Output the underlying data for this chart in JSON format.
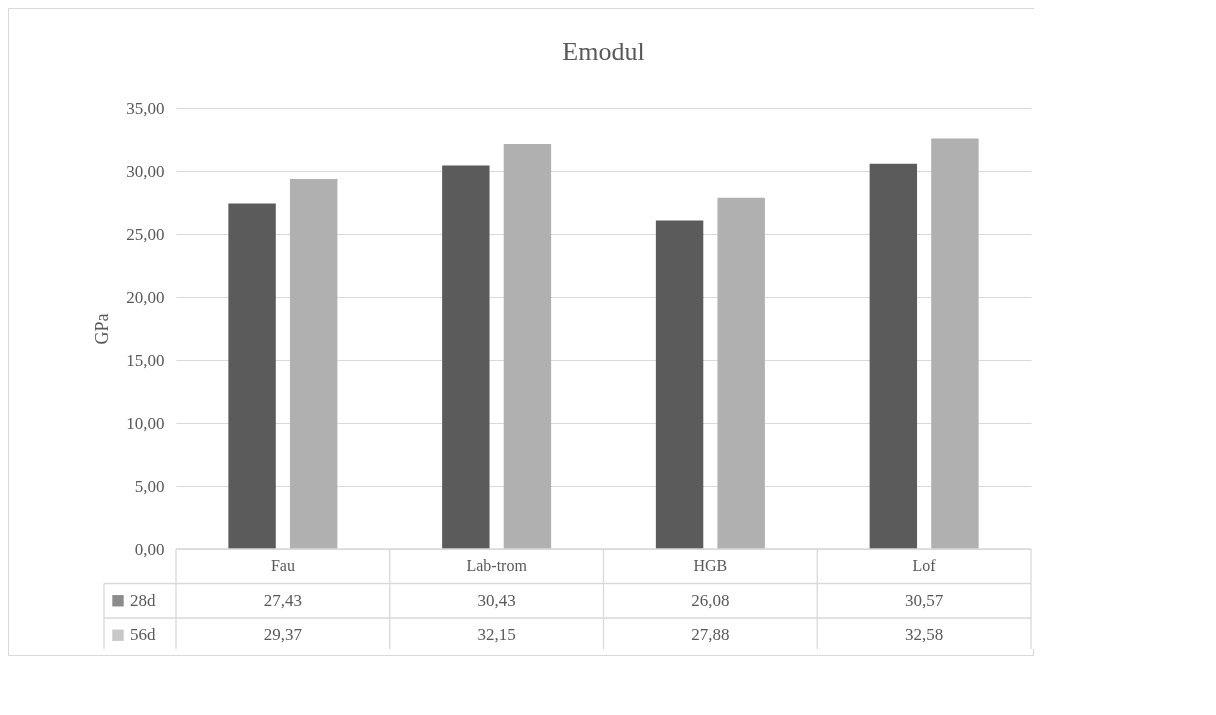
{
  "chart_data": {
    "type": "bar",
    "title": "Emodul",
    "ylabel": "GPa",
    "categories": [
      "Fau",
      "Lab-trom",
      "HGB",
      "Lof"
    ],
    "series": [
      {
        "name": "28d",
        "color": "#5b5b5b",
        "values": [
          27.43,
          30.43,
          26.08,
          30.57
        ],
        "value_labels": [
          "27,43",
          "30,43",
          "26,08",
          "30,57"
        ]
      },
      {
        "name": "56d",
        "color": "#b0b0b0",
        "values": [
          29.37,
          32.15,
          27.88,
          32.58
        ],
        "value_labels": [
          "29,37",
          "32,15",
          "27,88",
          "32,58"
        ]
      }
    ],
    "ylim": [
      0,
      35
    ],
    "yticks": [
      {
        "value": 0,
        "label": "0,00"
      },
      {
        "value": 5,
        "label": "5,00"
      },
      {
        "value": 10,
        "label": "10,00"
      },
      {
        "value": 15,
        "label": "15,00"
      },
      {
        "value": 20,
        "label": "20,00"
      },
      {
        "value": 25,
        "label": "25,00"
      },
      {
        "value": 30,
        "label": "30,00"
      },
      {
        "value": 35,
        "label": "35,00"
      }
    ],
    "grid": "y",
    "legend": "bottom"
  }
}
